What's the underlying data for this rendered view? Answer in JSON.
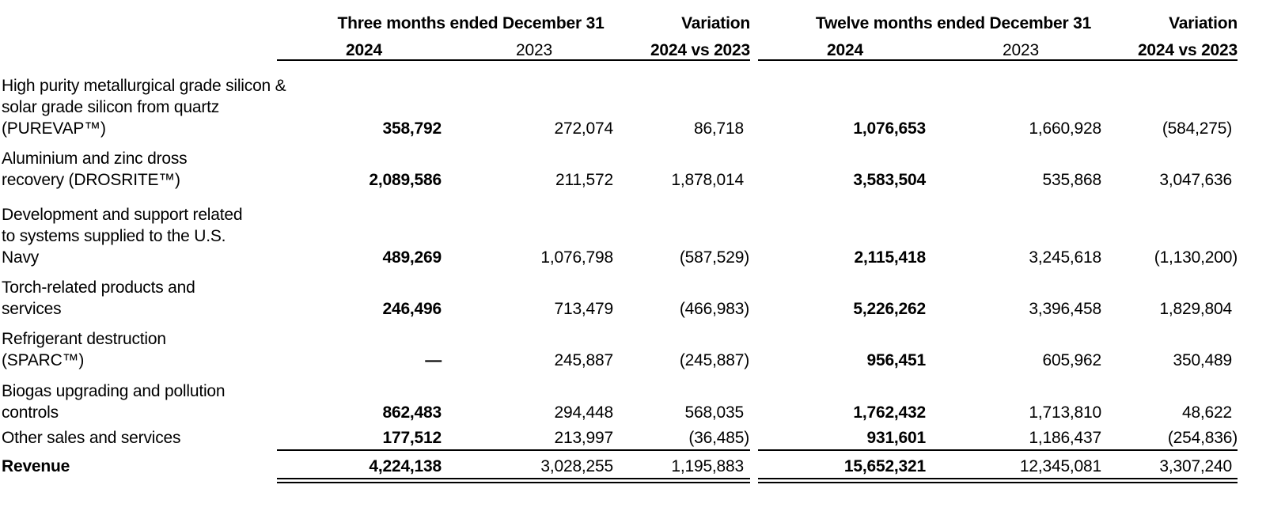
{
  "headers": {
    "group1": "Three months ended December 31",
    "group1_var": "Variation",
    "group2": "Twelve months ended December 31",
    "group2_var": "Variation",
    "col_2024": "2024",
    "col_2023": "2023",
    "col_var": "2024 vs 2023"
  },
  "rows": [
    {
      "label": "High purity metallurgical grade silicon & solar grade silicon from quartz (PUREVAP™)",
      "q2024": "358,792",
      "q2023": "272,074",
      "qvar": "86,718",
      "y2024": "1,076,653",
      "y2023": "1,660,928",
      "yvar": "(584,275)"
    },
    {
      "label": "Aluminium and zinc dross recovery (DROSRITE™)",
      "q2024": "2,089,586",
      "q2023": "211,572",
      "qvar": "1,878,014",
      "y2024": "3,583,504",
      "y2023": "535,868",
      "yvar": "3,047,636"
    },
    {
      "label": "Development and support related to systems supplied to the U.S. Navy",
      "q2024": "489,269",
      "q2023": "1,076,798",
      "qvar": "(587,529)",
      "y2024": "2,115,418",
      "y2023": "3,245,618",
      "yvar": "(1,130,200)"
    },
    {
      "label": "Torch-related products and services",
      "q2024": "246,496",
      "q2023": "713,479",
      "qvar": "(466,983)",
      "y2024": "5,226,262",
      "y2023": "3,396,458",
      "yvar": "1,829,804"
    },
    {
      "label": "Refrigerant destruction (SPARC™)",
      "q2024": "—",
      "q2023": "245,887",
      "qvar": "(245,887)",
      "y2024": "956,451",
      "y2023": "605,962",
      "yvar": "350,489"
    },
    {
      "label": "Biogas upgrading and pollution controls",
      "q2024": "862,483",
      "q2023": "294,448",
      "qvar": "568,035",
      "y2024": "1,762,432",
      "y2023": "1,713,810",
      "yvar": "48,622"
    },
    {
      "label": "Other sales and services",
      "q2024": "177,512",
      "q2023": "213,997",
      "qvar": "(36,485)",
      "y2024": "931,601",
      "y2023": "1,186,437",
      "yvar": "(254,836)"
    }
  ],
  "total": {
    "label": "Revenue",
    "q2024": "4,224,138",
    "q2023": "3,028,255",
    "qvar": "1,195,883",
    "y2024": "15,652,321",
    "y2023": "12,345,081",
    "yvar": "3,307,240"
  }
}
